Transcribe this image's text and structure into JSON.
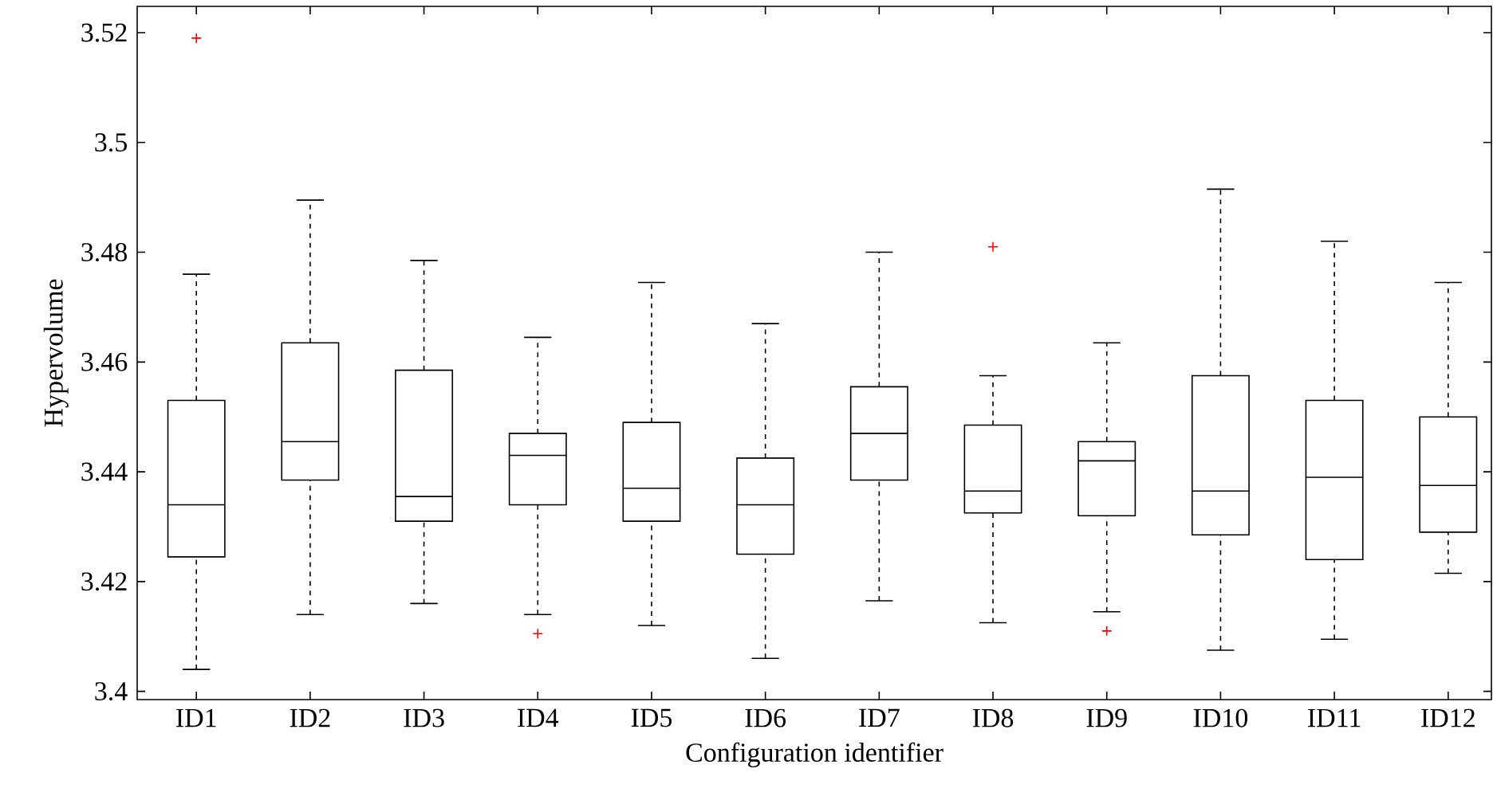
{
  "chart_data": {
    "type": "box",
    "xlabel": "Configuration identifier",
    "ylabel": "Hypervolume",
    "categories": [
      "ID1",
      "ID2",
      "ID3",
      "ID4",
      "ID5",
      "ID6",
      "ID7",
      "ID8",
      "ID9",
      "ID10",
      "ID11",
      "ID12"
    ],
    "boxes": [
      {
        "low": 3.404,
        "q1": 3.4245,
        "median": 3.434,
        "q3": 3.453,
        "high": 3.476,
        "outliers": [
          3.519
        ]
      },
      {
        "low": 3.414,
        "q1": 3.4385,
        "median": 3.4455,
        "q3": 3.4635,
        "high": 3.4895
      },
      {
        "low": 3.416,
        "q1": 3.431,
        "median": 3.4355,
        "q3": 3.4585,
        "high": 3.4785
      },
      {
        "low": 3.414,
        "q1": 3.434,
        "median": 3.443,
        "q3": 3.447,
        "high": 3.4645,
        "outliers": [
          3.4105
        ]
      },
      {
        "low": 3.412,
        "q1": 3.431,
        "median": 3.437,
        "q3": 3.449,
        "high": 3.4745
      },
      {
        "low": 3.406,
        "q1": 3.425,
        "median": 3.434,
        "q3": 3.4425,
        "high": 3.467
      },
      {
        "low": 3.4165,
        "q1": 3.4385,
        "median": 3.447,
        "q3": 3.4555,
        "high": 3.48
      },
      {
        "low": 3.4125,
        "q1": 3.4325,
        "median": 3.4365,
        "q3": 3.4485,
        "high": 3.4575,
        "outliers": [
          3.481
        ]
      },
      {
        "low": 3.4145,
        "q1": 3.432,
        "median": 3.442,
        "q3": 3.4455,
        "high": 3.4635,
        "outliers": [
          3.411
        ]
      },
      {
        "low": 3.4075,
        "q1": 3.4285,
        "median": 3.4365,
        "q3": 3.4575,
        "high": 3.4915
      },
      {
        "low": 3.4095,
        "q1": 3.424,
        "median": 3.439,
        "q3": 3.453,
        "high": 3.482
      },
      {
        "low": 3.4215,
        "q1": 3.429,
        "median": 3.4375,
        "q3": 3.45,
        "high": 3.4745
      }
    ],
    "ylim": [
      3.3985,
      3.5248
    ],
    "yticks": [
      3.4,
      3.42,
      3.44,
      3.46,
      3.48,
      3.5,
      3.52
    ],
    "grid": false
  }
}
